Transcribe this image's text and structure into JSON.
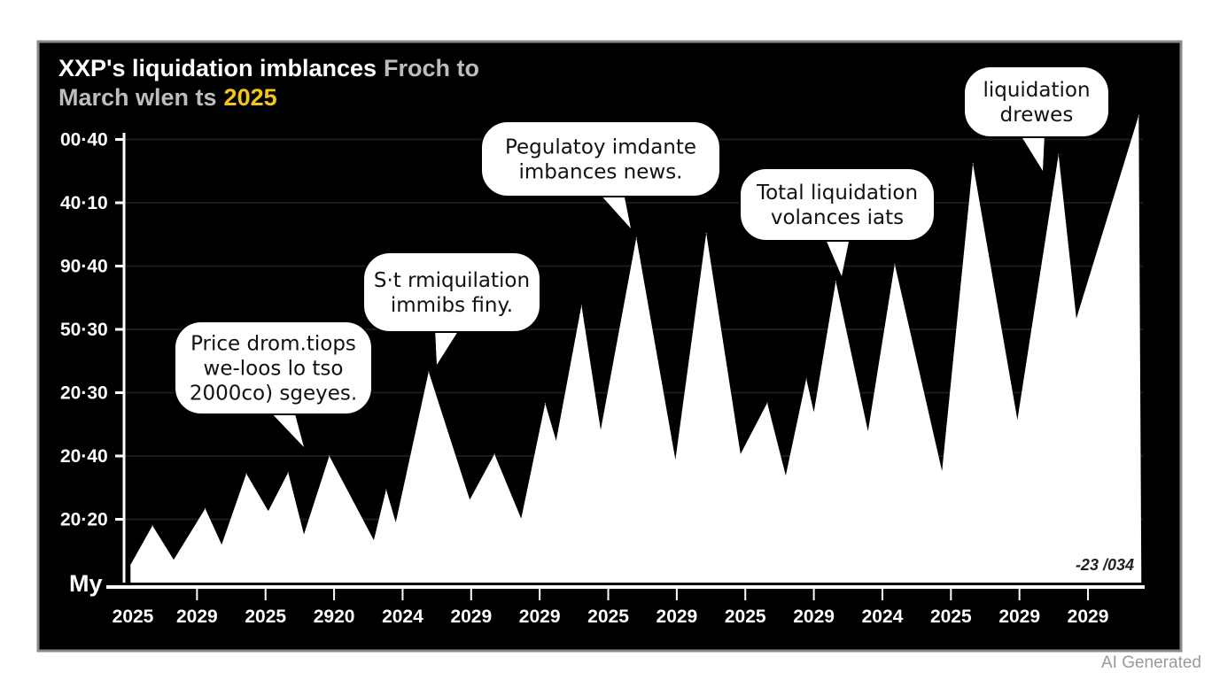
{
  "chart_data": {
    "type": "area",
    "title": {
      "line1_white": "XXP's liquidation imblances",
      "line1_gray": "Froch to",
      "line2_gray": "March wlen ts",
      "line2_highlight": "2025"
    },
    "xlabel": "",
    "ylabel": "My",
    "x_tick_labels": [
      "2025",
      "2029",
      "2025",
      "2920",
      "2024",
      "2029",
      "2029",
      "2025",
      "2029",
      "2025",
      "2029",
      "2024",
      "2025",
      "2029",
      "2029"
    ],
    "y_tick_labels": [
      "20·20",
      "20·40",
      "20·30",
      "50·30",
      "90·40",
      "40·10",
      "00·40"
    ],
    "ylim": [
      0,
      7.6
    ],
    "xlim": [
      0,
      14.8
    ],
    "grid": true,
    "colors": {
      "background": "#000000",
      "area": "#ffffff",
      "highlight": "#f5c518"
    },
    "x": [
      0.03,
      0.35,
      0.66,
      1.12,
      1.36,
      1.72,
      2.04,
      2.33,
      2.56,
      2.93,
      3.58,
      3.76,
      3.9,
      4.38,
      4.98,
      5.34,
      5.73,
      6.08,
      6.24,
      6.61,
      6.89,
      7.41,
      7.98,
      8.43,
      8.93,
      9.32,
      9.59,
      9.89,
      10.0,
      10.32,
      10.79,
      11.18,
      11.87,
      12.32,
      12.97,
      13.57,
      13.83,
      14.74
    ],
    "y": [
      0.28,
      0.9,
      0.36,
      1.17,
      0.6,
      1.72,
      1.13,
      1.74,
      0.76,
      2.0,
      0.67,
      1.47,
      0.95,
      3.33,
      1.31,
      2.03,
      1.01,
      2.83,
      2.24,
      4.38,
      2.41,
      5.45,
      1.94,
      5.52,
      2.03,
      2.84,
      1.69,
      3.22,
      2.69,
      4.76,
      2.39,
      5.03,
      1.76,
      6.62,
      2.57,
      6.76,
      4.17,
      7.38
    ],
    "annotations": [
      {
        "lines": [
          "Price drom.tiops",
          "we-loos lo tso",
          "2000co) sgeyes."
        ]
      },
      {
        "lines": [
          "S·t rmiquilation",
          "immibs finy."
        ]
      },
      {
        "lines": [
          "Pegulatoy imdante",
          "imbances news."
        ]
      },
      {
        "lines": [
          "Total liquidation",
          "volances iats"
        ]
      },
      {
        "lines": [
          "liquidation",
          "drewes"
        ]
      }
    ],
    "corner_label": "-23 /034"
  },
  "watermark": "AI Generated"
}
